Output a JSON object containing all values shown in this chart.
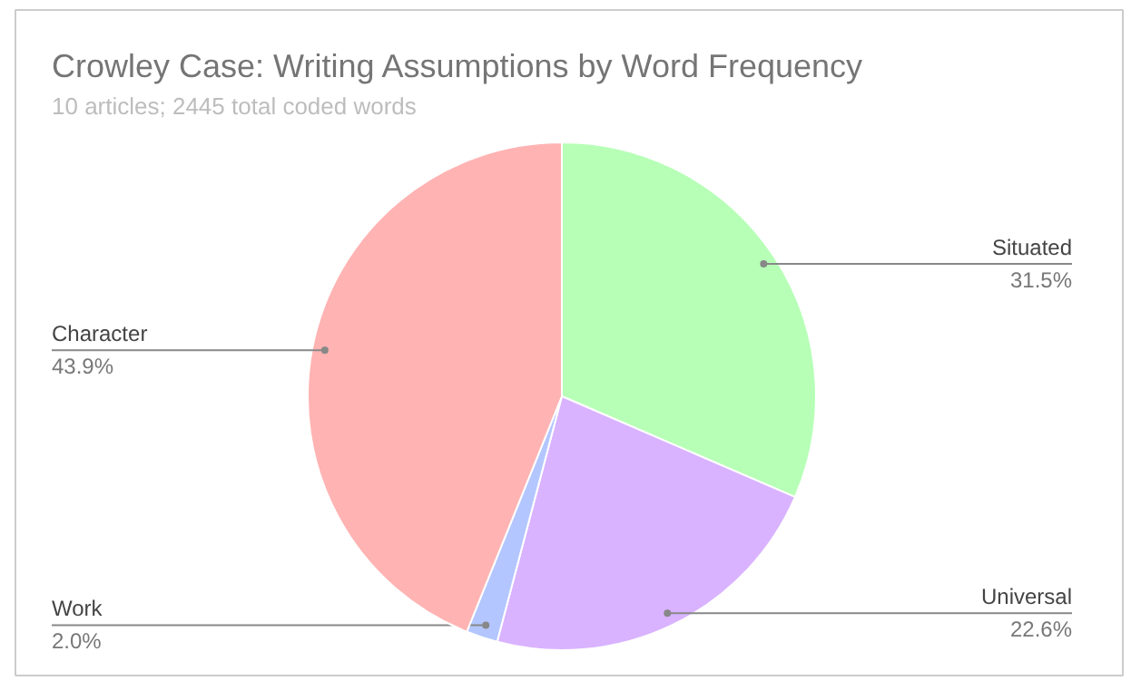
{
  "chart_data": {
    "type": "pie",
    "title": "Crowley Case: Writing Assumptions by Word Frequency",
    "subtitle": "10 articles; 2445 total coded words",
    "categories": [
      "Situated",
      "Universal",
      "Work",
      "Character"
    ],
    "values": [
      31.5,
      22.6,
      2.0,
      43.9
    ],
    "colors": [
      "#b7ffb7",
      "#d9b3ff",
      "#b3c6ff",
      "#ffb3b3"
    ],
    "value_labels": [
      "31.5%",
      "22.6%",
      "2.0%",
      "43.9%"
    ]
  }
}
